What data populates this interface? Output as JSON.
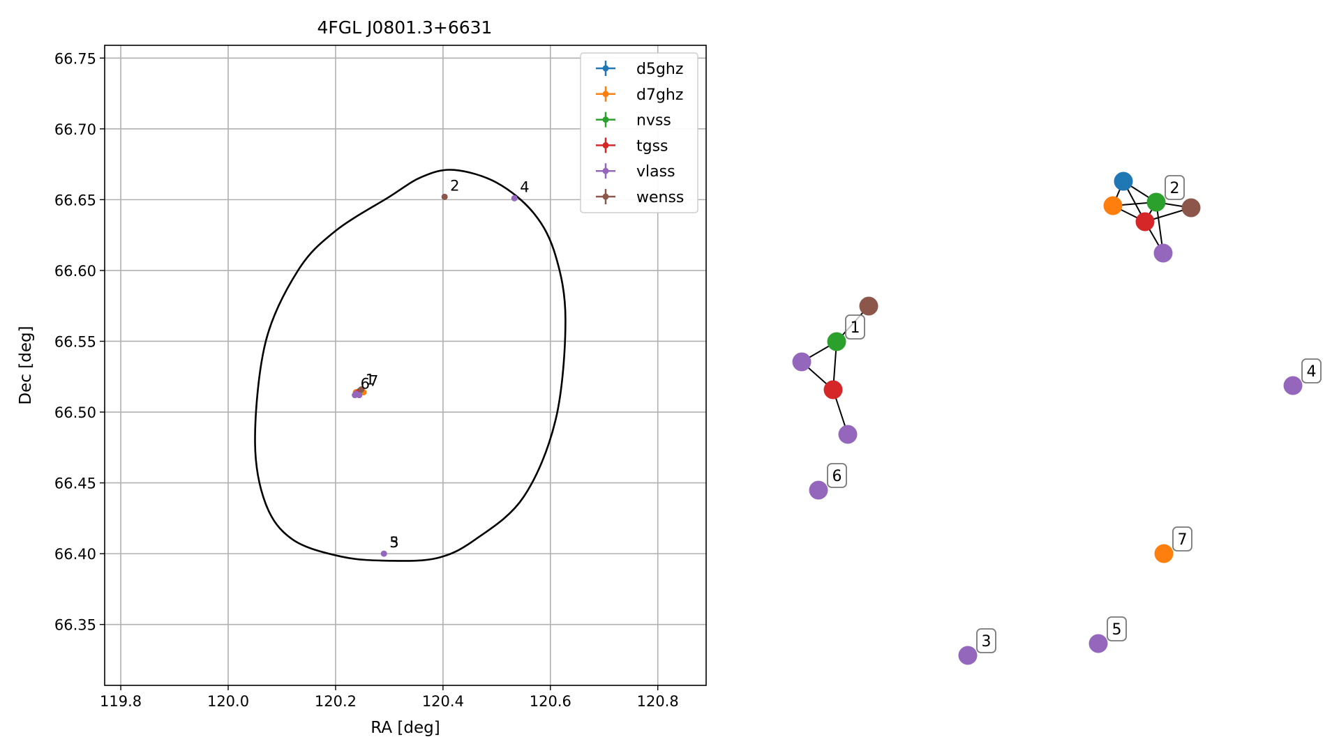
{
  "chart_data": [
    {
      "type": "scatter",
      "title": "4FGL J0801.3+6631",
      "xlabel": "RA [deg]",
      "ylabel": "Dec [deg]",
      "xlim": [
        119.77,
        120.89
      ],
      "ylim": [
        66.307,
        66.759
      ],
      "xticks": [
        "119.8",
        "120.0",
        "120.2",
        "120.4",
        "120.6",
        "120.8"
      ],
      "yticks": [
        "66.35",
        "66.40",
        "66.45",
        "66.50",
        "66.55",
        "66.60",
        "66.65",
        "66.70",
        "66.75"
      ],
      "grid": true,
      "legend_position": "top-right",
      "series": [
        {
          "name": "d5ghz",
          "color": "#1f77b4",
          "points": [
            {
              "x": 120.245,
              "y": 66.515
            }
          ]
        },
        {
          "name": "d7ghz",
          "color": "#ff7f0e",
          "points": [
            {
              "x": 120.238,
              "y": 66.514
            },
            {
              "x": 120.252,
              "y": 66.514
            }
          ]
        },
        {
          "name": "nvss",
          "color": "#2ca02c",
          "points": [
            {
              "x": 120.245,
              "y": 66.515
            }
          ]
        },
        {
          "name": "tgss",
          "color": "#d62728",
          "points": [
            {
              "x": 120.242,
              "y": 66.514
            }
          ]
        },
        {
          "name": "vlass",
          "color": "#9467bd",
          "points": [
            {
              "x": 120.238,
              "y": 66.513
            },
            {
              "x": 120.533,
              "y": 66.651
            },
            {
              "x": 120.29,
              "y": 66.4
            },
            {
              "x": 120.236,
              "y": 66.512
            },
            {
              "x": 120.244,
              "y": 66.512
            }
          ]
        },
        {
          "name": "wenss",
          "color": "#8c564b",
          "points": [
            {
              "x": 120.403,
              "y": 66.652
            },
            {
              "x": 120.248,
              "y": 66.516
            }
          ]
        }
      ],
      "annotations": [
        {
          "text": "1",
          "x": 120.245,
          "y": 66.515
        },
        {
          "text": "2",
          "x": 120.403,
          "y": 66.652
        },
        {
          "text": "3",
          "x": 120.29,
          "y": 66.4
        },
        {
          "text": "4",
          "x": 120.533,
          "y": 66.651
        },
        {
          "text": "5",
          "x": 120.29,
          "y": 66.4
        },
        {
          "text": "6",
          "x": 120.236,
          "y": 66.512
        },
        {
          "text": "7",
          "x": 120.252,
          "y": 66.514
        }
      ],
      "ellipse": [
        {
          "x": 120.42,
          "y": 66.671
        },
        {
          "x": 120.5,
          "y": 66.662
        },
        {
          "x": 120.57,
          "y": 66.64
        },
        {
          "x": 120.61,
          "y": 66.61
        },
        {
          "x": 120.628,
          "y": 66.565
        },
        {
          "x": 120.61,
          "y": 66.495
        },
        {
          "x": 120.55,
          "y": 66.44
        },
        {
          "x": 120.46,
          "y": 66.41
        },
        {
          "x": 120.39,
          "y": 66.397
        },
        {
          "x": 120.3,
          "y": 66.395
        },
        {
          "x": 120.21,
          "y": 66.398
        },
        {
          "x": 120.12,
          "y": 66.41
        },
        {
          "x": 120.07,
          "y": 66.435
        },
        {
          "x": 120.05,
          "y": 66.48
        },
        {
          "x": 120.07,
          "y": 66.55
        },
        {
          "x": 120.13,
          "y": 66.6
        },
        {
          "x": 120.2,
          "y": 66.628
        },
        {
          "x": 120.3,
          "y": 66.652
        },
        {
          "x": 120.36,
          "y": 66.666
        }
      ]
    },
    {
      "type": "network",
      "nodes": [
        {
          "id": "a1",
          "color": "#1f77b4"
        },
        {
          "id": "a2",
          "color": "#ff7f0e"
        },
        {
          "id": "a3",
          "color": "#2ca02c",
          "label": "2"
        },
        {
          "id": "a4",
          "color": "#d62728"
        },
        {
          "id": "a5",
          "color": "#8c564b"
        },
        {
          "id": "a6",
          "color": "#9467bd"
        },
        {
          "id": "b1",
          "color": "#8c564b"
        },
        {
          "id": "b2",
          "color": "#2ca02c",
          "label": "1"
        },
        {
          "id": "b3",
          "color": "#9467bd"
        },
        {
          "id": "b4",
          "color": "#d62728"
        },
        {
          "id": "b5",
          "color": "#9467bd"
        },
        {
          "id": "n4",
          "color": "#9467bd",
          "label": "4"
        },
        {
          "id": "n6",
          "color": "#9467bd",
          "label": "6"
        },
        {
          "id": "n7",
          "color": "#ff7f0e",
          "label": "7"
        },
        {
          "id": "n3",
          "color": "#9467bd",
          "label": "3"
        },
        {
          "id": "n5",
          "color": "#9467bd",
          "label": "5"
        }
      ],
      "edges": [
        [
          "a1",
          "a3"
        ],
        [
          "a1",
          "a4"
        ],
        [
          "a1",
          "a2"
        ],
        [
          "a2",
          "a3"
        ],
        [
          "a2",
          "a4"
        ],
        [
          "a3",
          "a5"
        ],
        [
          "a3",
          "a4"
        ],
        [
          "a4",
          "a5"
        ],
        [
          "a3",
          "a6"
        ],
        [
          "a4",
          "a6"
        ],
        [
          "b1",
          "b2"
        ],
        [
          "b2",
          "b3"
        ],
        [
          "b2",
          "b4"
        ],
        [
          "b3",
          "b4"
        ],
        [
          "b4",
          "b5"
        ]
      ]
    }
  ]
}
